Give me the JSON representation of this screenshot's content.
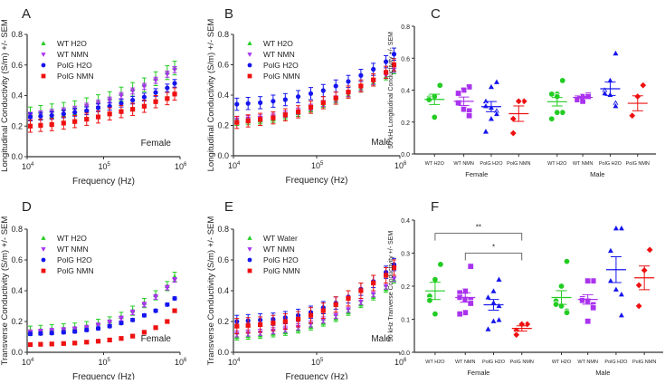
{
  "colors": {
    "wt_h2o": "#22cc22",
    "wt_nmn": "#aa33ee",
    "polg_h2o": "#1515ee",
    "polg_nmn": "#ee1111"
  },
  "chart_data": [
    {
      "id": "A",
      "type": "line",
      "panel_label": "A",
      "annotation": "Female",
      "xlabel": "Frequency (Hz)",
      "ylabel": "Longitudinal Conductivity (S/m) +/- SEM",
      "xscale": "log",
      "xlim": [
        10000,
        1000000
      ],
      "xticks": [
        "10^4",
        "10^5",
        "10^6"
      ],
      "ylim": [
        0,
        0.8
      ],
      "yticks": [
        "0.0",
        "0.2",
        "0.4",
        "0.6",
        "0.8"
      ],
      "legend": "top-left",
      "x": [
        11000,
        15000,
        21000,
        30000,
        42000,
        60000,
        85000,
        120000,
        170000,
        240000,
        340000,
        480000,
        680000,
        850000
      ],
      "series": [
        {
          "name": "WT H2O",
          "marker": "triangle-up",
          "color": "wt_h2o",
          "sem": 0.045,
          "values": [
            0.28,
            0.29,
            0.3,
            0.31,
            0.32,
            0.34,
            0.36,
            0.38,
            0.41,
            0.44,
            0.47,
            0.51,
            0.55,
            0.58
          ]
        },
        {
          "name": "WT NMN",
          "marker": "triangle-down",
          "color": "wt_nmn",
          "sem": 0.02,
          "values": [
            0.27,
            0.28,
            0.29,
            0.3,
            0.31,
            0.33,
            0.35,
            0.37,
            0.4,
            0.43,
            0.46,
            0.5,
            0.54,
            0.57
          ]
        },
        {
          "name": "PolG H2O",
          "marker": "circle",
          "color": "polg_h2o",
          "sem": 0.025,
          "values": [
            0.26,
            0.265,
            0.27,
            0.28,
            0.29,
            0.3,
            0.32,
            0.33,
            0.35,
            0.37,
            0.39,
            0.42,
            0.45,
            0.48
          ]
        },
        {
          "name": "PolG NMN",
          "marker": "square",
          "color": "polg_nmn",
          "sem": 0.04,
          "values": [
            0.2,
            0.205,
            0.21,
            0.22,
            0.23,
            0.245,
            0.26,
            0.28,
            0.295,
            0.31,
            0.33,
            0.36,
            0.38,
            0.41
          ]
        }
      ]
    },
    {
      "id": "B",
      "type": "line",
      "panel_label": "B",
      "annotation": "Male",
      "xlabel": "Frequency (Hz)",
      "ylabel": "Longitudinal Conductivity (S/m) +/- SEM",
      "xscale": "log",
      "xlim": [
        10000,
        1000000
      ],
      "xticks": [
        "10^4",
        "10^5",
        "10^6"
      ],
      "ylim": [
        0,
        0.8
      ],
      "yticks": [
        "0.0",
        "0.2",
        "0.4",
        "0.6",
        "0.8"
      ],
      "legend": "top-left",
      "x": [
        11000,
        15000,
        21000,
        30000,
        42000,
        60000,
        85000,
        120000,
        170000,
        240000,
        340000,
        480000,
        680000,
        850000
      ],
      "series": [
        {
          "name": "WT H2O",
          "marker": "triangle-up",
          "color": "wt_h2o",
          "sem": 0.02,
          "values": [
            0.22,
            0.225,
            0.23,
            0.24,
            0.26,
            0.28,
            0.3,
            0.33,
            0.36,
            0.4,
            0.44,
            0.48,
            0.52,
            0.56
          ]
        },
        {
          "name": "WT NMN",
          "marker": "triangle-down",
          "color": "wt_nmn",
          "sem": 0.02,
          "values": [
            0.24,
            0.245,
            0.25,
            0.26,
            0.275,
            0.295,
            0.32,
            0.345,
            0.375,
            0.41,
            0.45,
            0.49,
            0.53,
            0.57
          ]
        },
        {
          "name": "PolG H2O",
          "marker": "circle",
          "color": "polg_h2o",
          "sem": 0.04,
          "values": [
            0.34,
            0.345,
            0.35,
            0.36,
            0.37,
            0.39,
            0.41,
            0.43,
            0.46,
            0.49,
            0.53,
            0.57,
            0.62,
            0.67
          ]
        },
        {
          "name": "PolG NMN",
          "marker": "square",
          "color": "polg_nmn",
          "sem": 0.04,
          "values": [
            0.22,
            0.23,
            0.24,
            0.25,
            0.27,
            0.29,
            0.32,
            0.35,
            0.38,
            0.42,
            0.46,
            0.5,
            0.55,
            0.6
          ]
        }
      ]
    },
    {
      "id": "C",
      "type": "scatter",
      "panel_label": "C",
      "ylabel": "50 kHz Longitudinal Conductivity +/- SEM",
      "ylim": [
        0,
        0.8
      ],
      "yticks": [
        "0.0",
        "0.2",
        "0.4",
        "0.6",
        "0.8"
      ],
      "groups": [
        {
          "name": "Female",
          "categories": [
            {
              "name": "WT H2O",
              "marker": "circle",
              "color": "wt_h2o",
              "values": [
                0.43,
                0.36,
                0.35,
                0.34,
                0.23
              ]
            },
            {
              "name": "WT NMN",
              "marker": "square",
              "color": "wt_nmn",
              "values": [
                0.42,
                0.4,
                0.38,
                0.32,
                0.28,
                0.27,
                0.24
              ]
            },
            {
              "name": "PolG H2O",
              "marker": "triangle",
              "color": "polg_h2o",
              "values": [
                0.45,
                0.42,
                0.33,
                0.3,
                0.29,
                0.27,
                0.25,
                0.22,
                0.14
              ]
            },
            {
              "name": "PolG NMN",
              "marker": "diamond",
              "color": "polg_nmn",
              "values": [
                0.33,
                0.33,
                0.22,
                0.13
              ]
            }
          ]
        },
        {
          "name": "Male",
          "categories": [
            {
              "name": "WT H2O",
              "marker": "circle",
              "color": "wt_h2o",
              "values": [
                0.46,
                0.375,
                0.375,
                0.375,
                0.36,
                0.26,
                0.26,
                0.26,
                0.22
              ]
            },
            {
              "name": "WT NMN",
              "marker": "square",
              "color": "wt_nmn",
              "values": [
                0.37,
                0.36,
                0.35,
                0.34,
                0.33,
                0.37,
                0.36
              ]
            },
            {
              "name": "PolG H2O",
              "marker": "triangle",
              "color": "polg_h2o",
              "values": [
                0.63,
                0.46,
                0.4,
                0.38,
                0.37,
                0.32,
                0.3
              ]
            },
            {
              "name": "PolG NMN",
              "marker": "diamond",
              "color": "polg_nmn",
              "values": [
                0.43,
                0.36,
                0.24,
                0.24
              ]
            }
          ]
        }
      ],
      "significance": []
    },
    {
      "id": "D",
      "type": "line",
      "panel_label": "D",
      "annotation": "Female",
      "xlabel": "Frequency (Hz)",
      "ylabel": "Transverse Conductivity (S/m) +/- SEM",
      "xscale": "log",
      "xlim": [
        10000,
        1000000
      ],
      "xticks": [
        "10^4",
        "10^5",
        "10^6"
      ],
      "ylim": [
        0,
        0.8
      ],
      "yticks": [
        "0.0",
        "0.2",
        "0.4",
        "0.6",
        "0.8"
      ],
      "legend": "top-left",
      "x": [
        11000,
        15000,
        21000,
        30000,
        42000,
        60000,
        85000,
        120000,
        170000,
        240000,
        340000,
        480000,
        680000,
        850000
      ],
      "series": [
        {
          "name": "WT H2O",
          "marker": "triangle-up",
          "color": "wt_h2o",
          "sem": 0.03,
          "values": [
            0.14,
            0.145,
            0.15,
            0.155,
            0.16,
            0.17,
            0.185,
            0.2,
            0.23,
            0.27,
            0.32,
            0.37,
            0.43,
            0.49
          ]
        },
        {
          "name": "WT NMN",
          "marker": "triangle-down",
          "color": "wt_nmn",
          "sem": 0.015,
          "values": [
            0.13,
            0.135,
            0.14,
            0.145,
            0.15,
            0.16,
            0.175,
            0.195,
            0.22,
            0.26,
            0.31,
            0.36,
            0.42,
            0.47
          ]
        },
        {
          "name": "PolG H2O",
          "marker": "circle",
          "color": "polg_h2o",
          "sem": 0.01,
          "values": [
            0.12,
            0.122,
            0.125,
            0.13,
            0.135,
            0.145,
            0.155,
            0.17,
            0.19,
            0.21,
            0.24,
            0.27,
            0.31,
            0.35
          ]
        },
        {
          "name": "PolG NMN",
          "marker": "square",
          "color": "polg_nmn",
          "sem": 0.008,
          "values": [
            0.05,
            0.052,
            0.054,
            0.057,
            0.06,
            0.066,
            0.072,
            0.08,
            0.09,
            0.105,
            0.13,
            0.16,
            0.2,
            0.27
          ]
        }
      ]
    },
    {
      "id": "E",
      "type": "line",
      "panel_label": "E",
      "annotation": "Male",
      "xlabel": "Frequency (Hz)",
      "ylabel": "Transverse Conductivity (S/m) +/- SEM",
      "xscale": "log",
      "xlim": [
        10000,
        1000000
      ],
      "xticks": [
        "10^4",
        "10^5",
        "10^6"
      ],
      "ylim": [
        0,
        0.8
      ],
      "yticks": [
        "0.0",
        "0.2",
        "0.4",
        "0.6",
        "0.8"
      ],
      "legend": "top-left",
      "x": [
        11000,
        15000,
        21000,
        30000,
        42000,
        60000,
        85000,
        120000,
        170000,
        240000,
        340000,
        480000,
        680000,
        850000
      ],
      "series": [
        {
          "name": "WT Water",
          "marker": "triangle-up",
          "color": "wt_h2o",
          "sem": 0.02,
          "values": [
            0.1,
            0.105,
            0.11,
            0.12,
            0.13,
            0.145,
            0.165,
            0.19,
            0.22,
            0.26,
            0.31,
            0.36,
            0.41,
            0.47
          ]
        },
        {
          "name": "WT NMN",
          "marker": "triangle-down",
          "color": "wt_nmn",
          "sem": 0.02,
          "values": [
            0.12,
            0.125,
            0.13,
            0.14,
            0.15,
            0.165,
            0.185,
            0.21,
            0.24,
            0.28,
            0.33,
            0.38,
            0.43,
            0.48
          ]
        },
        {
          "name": "PolG H2O",
          "marker": "circle",
          "color": "polg_h2o",
          "sem": 0.04,
          "values": [
            0.2,
            0.205,
            0.21,
            0.215,
            0.225,
            0.24,
            0.26,
            0.29,
            0.32,
            0.36,
            0.41,
            0.46,
            0.52,
            0.57
          ]
        },
        {
          "name": "PolG NMN",
          "marker": "square",
          "color": "polg_nmn",
          "sem": 0.05,
          "values": [
            0.17,
            0.175,
            0.18,
            0.19,
            0.2,
            0.215,
            0.24,
            0.27,
            0.31,
            0.35,
            0.4,
            0.45,
            0.5,
            0.55
          ]
        }
      ]
    },
    {
      "id": "F",
      "type": "scatter",
      "panel_label": "F",
      "ylabel": "50 kHz Tranverse Conductivity +/- SEM",
      "ylim": [
        0,
        0.4
      ],
      "yticks": [
        "0.0",
        "0.1",
        "0.2",
        "0.3",
        "0.4"
      ],
      "groups": [
        {
          "name": "Female",
          "categories": [
            {
              "name": "WT H2O",
              "marker": "circle",
              "color": "wt_h2o",
              "values": [
                0.266,
                0.22,
                0.17,
                0.157,
                0.116
              ]
            },
            {
              "name": "WT NMN",
              "marker": "square",
              "color": "wt_nmn",
              "values": [
                0.26,
                0.185,
                0.18,
                0.166,
                0.16,
                0.157,
                0.148,
                0.12,
                0.116
              ]
            },
            {
              "name": "PolG H2O",
              "marker": "triangle",
              "color": "polg_h2o",
              "values": [
                0.22,
                0.185,
                0.17,
                0.166,
                0.15,
                0.14,
                0.098,
                0.094,
                0.07
              ]
            },
            {
              "name": "PolG NMN",
              "marker": "diamond",
              "color": "polg_nmn",
              "values": [
                0.085,
                0.085,
                0.066,
                0.053
              ]
            }
          ]
        },
        {
          "name": "Male",
          "categories": [
            {
              "name": "WT H2O",
              "marker": "circle",
              "color": "wt_h2o",
              "values": [
                0.275,
                0.2,
                0.155,
                0.145,
                0.14,
                0.125,
                0.12
              ]
            },
            {
              "name": "WT NMN",
              "marker": "square",
              "color": "wt_nmn",
              "values": [
                0.216,
                0.216,
                0.162,
                0.157,
                0.155,
                0.144,
                0.135,
                0.094
              ]
            },
            {
              "name": "PolG H2O",
              "marker": "triangle",
              "color": "polg_h2o",
              "values": [
                0.375,
                0.375,
                0.307,
                0.216,
                0.19,
                0.175,
                0.112
              ]
            },
            {
              "name": "PolG NMN",
              "marker": "diamond",
              "color": "polg_nmn",
              "values": [
                0.31,
                0.248,
                0.203,
                0.14
              ]
            }
          ]
        }
      ],
      "significance": [
        {
          "label": "**",
          "from": "Female WT H2O",
          "to": "Female PolG NMN",
          "level": 0.36
        },
        {
          "label": "*",
          "from": "Female WT NMN",
          "to": "Female PolG NMN",
          "level": 0.3
        }
      ]
    }
  ]
}
